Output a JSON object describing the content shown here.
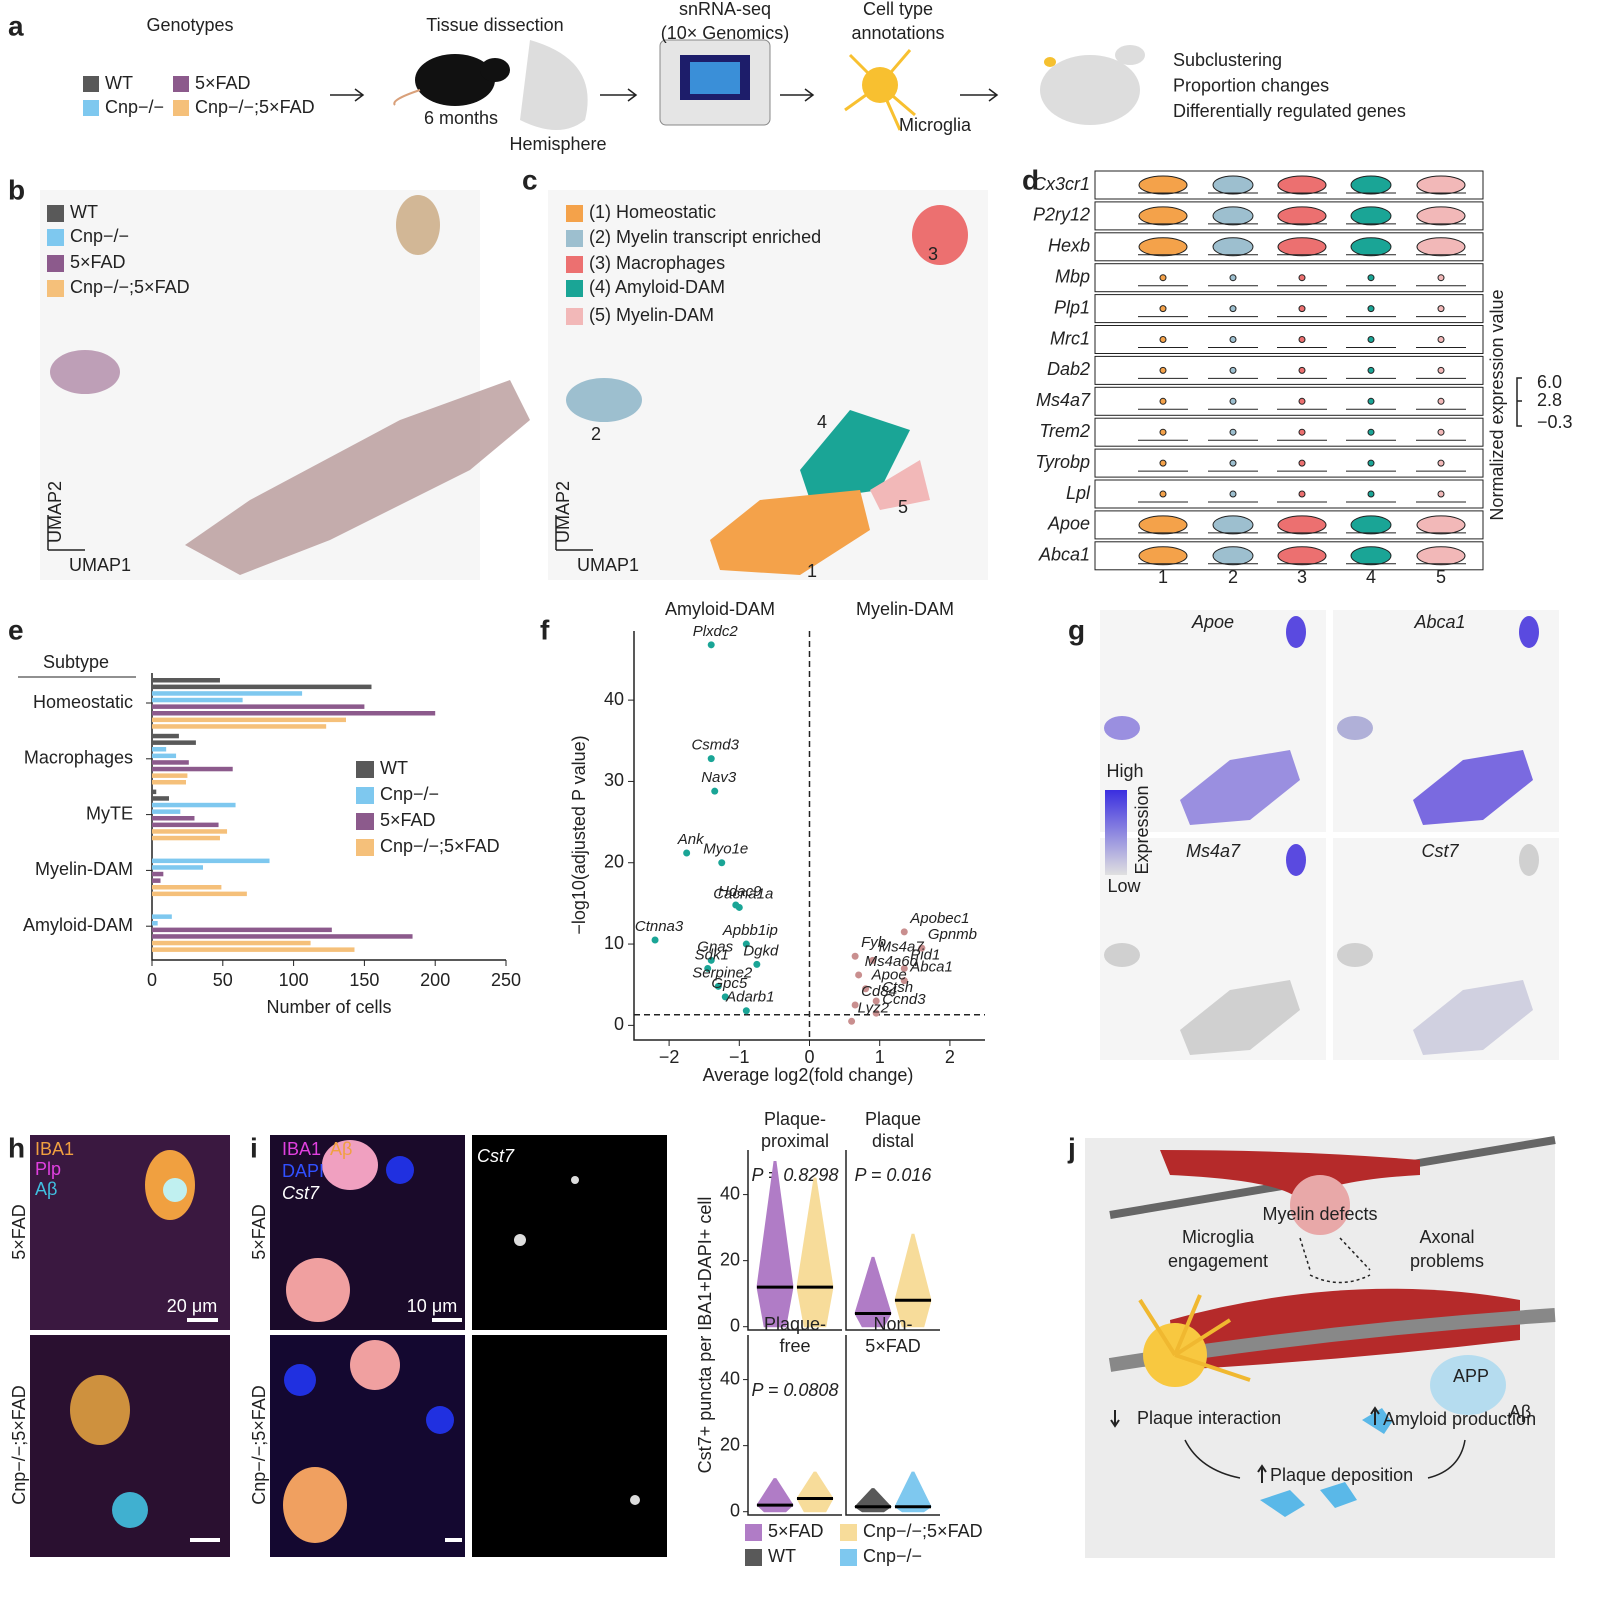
{
  "panel_labels": [
    "a",
    "b",
    "c",
    "d",
    "e",
    "f",
    "g",
    "h",
    "i",
    "j"
  ],
  "a": {
    "genotypes_title": "Genotypes",
    "genotypes": [
      "WT",
      "5×FAD",
      "Cnp−/−",
      "Cnp−/−;5×FAD"
    ],
    "genotype_colors": [
      "#595959",
      "#8c5a8c",
      "#7ec8ef",
      "#f5c07a"
    ],
    "dissection": "Tissue dissection",
    "age": "6 months",
    "hemisphere": "Hemisphere",
    "seq": [
      "snRNA-seq",
      "(10× Genomics)"
    ],
    "annotation": [
      "Cell type",
      "annotations"
    ],
    "microglia": "Microglia",
    "outcomes": [
      "Subclustering",
      "Proportion changes",
      "Differentially regulated genes"
    ]
  },
  "b": {
    "legend": [
      "WT",
      "Cnp−/−",
      "5×FAD",
      "Cnp−/−;5×FAD"
    ],
    "colors": [
      "#595959",
      "#7ec8ef",
      "#8c5a8c",
      "#f5c07a"
    ],
    "xaxis": "UMAP1",
    "yaxis": "UMAP2"
  },
  "c": {
    "legend": [
      "(1) Homeostatic",
      "(2) Myelin transcript enriched",
      "(3) Macrophages",
      "(4) Amyloid-DAM",
      "(5) Myelin-DAM"
    ],
    "colors": [
      "#f4a24a",
      "#9dbfcf",
      "#ec7070",
      "#1aa596",
      "#f2b8b8"
    ],
    "cluster_numbers": [
      "1",
      "2",
      "3",
      "4",
      "5"
    ],
    "xaxis": "UMAP1",
    "yaxis": "UMAP2"
  },
  "d": {
    "genes": [
      "Cx3cr1",
      "P2ry12",
      "Hexb",
      "Mbp",
      "Plp1",
      "Mrc1",
      "Dab2",
      "Ms4a7",
      "Trem2",
      "Tyrobp",
      "Lpl",
      "Apoe",
      "Abca1"
    ],
    "clusters": [
      "1",
      "2",
      "3",
      "4",
      "5"
    ],
    "scale_ticks": [
      "6.0",
      "2.8",
      "−0.3"
    ],
    "scale_title": "Normalized expression value"
  },
  "g": {
    "genes": [
      "Apoe",
      "Abca1",
      "Ms4a7",
      "Cst7"
    ],
    "high": "High",
    "low": "Low",
    "scale_title": "Expression"
  },
  "h": {
    "channels": [
      "IBA1",
      "Plp",
      "Aβ"
    ],
    "rows": [
      "5×FAD",
      "Cnp−/−;5×FAD"
    ],
    "scale": "20 μm"
  },
  "i": {
    "channels": [
      "IBA1",
      "Aβ",
      "DAPI",
      "Cst7"
    ],
    "rows": [
      "5×FAD",
      "Cnp−/−;5×FAD"
    ],
    "scale": "10 μm",
    "single_channel": "Cst7"
  },
  "j": {
    "myelin": "Myelin defects",
    "microglia": [
      "Microglia",
      "engagement"
    ],
    "axonal": [
      "Axonal",
      "problems"
    ],
    "app": "APP",
    "abeta": "Aβ",
    "interaction": "Plaque interaction",
    "production": "Amyloid production",
    "deposition": "Plaque deposition"
  },
  "chart_data": [
    {
      "type": "bar",
      "orientation": "horizontal",
      "header": "Subtype",
      "xlabel": "Number of cells",
      "categories": [
        "Homeostatic",
        "Macrophages",
        "MyTE",
        "Myelin-DAM",
        "Amyloid-DAM"
      ],
      "series": [
        {
          "name": "WT",
          "color": "#595959",
          "values": [
            [
              48,
              155
            ],
            [
              19,
              31
            ],
            [
              3,
              12
            ],
            [
              0,
              0
            ],
            [
              0,
              0
            ]
          ]
        },
        {
          "name": "Cnp−/−",
          "color": "#7ec8ef",
          "values": [
            [
              106,
              64
            ],
            [
              10,
              17
            ],
            [
              59,
              20
            ],
            [
              83,
              36
            ],
            [
              14,
              4
            ]
          ]
        },
        {
          "name": "5×FAD",
          "color": "#8c5a8c",
          "values": [
            [
              150,
              200
            ],
            [
              26,
              57
            ],
            [
              30,
              47
            ],
            [
              8,
              6
            ],
            [
              127,
              184
            ]
          ]
        },
        {
          "name": "Cnp−/−;5×FAD",
          "color": "#f5c07a",
          "values": [
            [
              137,
              123
            ],
            [
              25,
              24
            ],
            [
              53,
              48
            ],
            [
              49,
              67
            ],
            [
              112,
              143
            ]
          ]
        }
      ],
      "xlim": [
        0,
        250
      ],
      "xticks": [
        0,
        50,
        100,
        150,
        200,
        250
      ]
    },
    {
      "type": "scatter",
      "xlabel": "Average log2(fold change)",
      "ylabel": "−log10(adjusted P value)",
      "series": [
        {
          "name": "Amyloid-DAM",
          "color": "#1aa596",
          "x": [
            -1.4,
            -1.4,
            -1.35,
            -1.75,
            -1.25,
            -1.05,
            -1.0,
            -2.2,
            -1.4,
            -0.9,
            -1.45,
            -0.75,
            -1.3,
            -1.2,
            -0.9
          ],
          "y": [
            46.8,
            32.8,
            28.8,
            21.2,
            20,
            14.8,
            14.5,
            10.5,
            8,
            10,
            7,
            7.5,
            4.8,
            3.5,
            1.8
          ],
          "labels": [
            "Plxdc2",
            "Csmd3",
            "Nav3",
            "Ank",
            "Myo1e",
            "Hdac9",
            "Cacna1a",
            "Ctnna3",
            "Gnas",
            "Apbb1ip",
            "Sdk1",
            "Dgkd",
            "Serpine2",
            "Gpc5",
            "Adarb1"
          ]
        },
        {
          "name": "Myelin-DAM",
          "color": "#c98f8f",
          "x": [
            0.65,
            1.35,
            1.6,
            0.9,
            1.35,
            0.7,
            1.35,
            0.8,
            0.95,
            0.65,
            0.95,
            0.6
          ],
          "y": [
            8.5,
            11.5,
            9.5,
            8,
            7,
            6.2,
            5.5,
            4.5,
            3,
            2.5,
            1.5,
            0.5
          ],
          "labels": [
            "Fyb",
            "Apobec1",
            "Gpnmb",
            "Ms4a7",
            "Pid1",
            "Ms4a6d",
            "Abca1",
            "Apoe",
            "Ctsh",
            "Cd84",
            "Ccnd3",
            "Lyz2"
          ]
        }
      ],
      "xlim": [
        -2.5,
        2.5
      ],
      "xticks": [
        {
          "value": -2,
          "label": "−2"
        },
        {
          "value": -1,
          "label": "−1"
        },
        0,
        1,
        2
      ],
      "ylim": [
        -1.8,
        48.5
      ],
      "yticks": [
        0,
        10,
        20,
        30,
        40
      ],
      "vline": 0,
      "hline": 1.3
    },
    {
      "type": "violin",
      "ylabel": "Cst7+ puncta per IBA1+DAPI+ cell",
      "groups": [
        [
          "Plaque-",
          "proximal"
        ],
        [
          "Plaque",
          "distal"
        ],
        [
          "Plaque-",
          "free"
        ],
        [
          "Non-",
          "5×FAD"
        ]
      ],
      "p_values": [
        "P = 0.8298",
        "P = 0.016",
        "P = 0.0808"
      ],
      "series": [
        {
          "name": "5×FAD",
          "color": "#b07cc6",
          "medians": [
            12,
            4,
            2,
            null
          ],
          "maxima": [
            50,
            21,
            10,
            null
          ]
        },
        {
          "name": "Cnp−/−;5×FAD",
          "color": "#f7dc9a",
          "medians": [
            12,
            8,
            4,
            null
          ],
          "maxima": [
            45,
            28,
            12,
            null
          ]
        },
        {
          "name": "WT",
          "color": "#595959",
          "medians": [
            null,
            null,
            null,
            1.5
          ],
          "maxima": [
            null,
            null,
            null,
            7
          ]
        },
        {
          "name": "Cnp−/−",
          "color": "#7ec8ef",
          "medians": [
            null,
            null,
            null,
            1.5
          ],
          "maxima": [
            null,
            null,
            null,
            12
          ]
        }
      ],
      "ylim": [
        -1,
        53.5
      ],
      "yticks": [
        0,
        20,
        40
      ]
    }
  ]
}
